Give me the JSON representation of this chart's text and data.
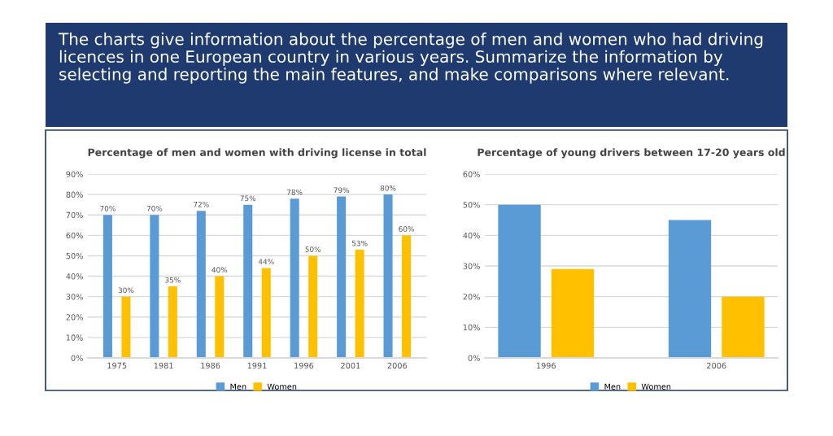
{
  "chart_data": [
    {
      "type": "other",
      "title": "The charts give information about the percentage of men and women who had driving licences in one European country in various years. Summarize the information by selecting and reporting the main features, and make comparisons where relevant."
    },
    {
      "type": "bar",
      "title": "Percentage of men and women with driving license in total",
      "categories": [
        "1975",
        "1981",
        "1986",
        "1991",
        "1996",
        "2001",
        "2006"
      ],
      "series": [
        {
          "name": "Men",
          "color": "#5b9bd5",
          "values": [
            70,
            70,
            72,
            75,
            78,
            79,
            80
          ],
          "value_labels": [
            "70%",
            "70%",
            "72%",
            "75%",
            "78%",
            "79%",
            "80%"
          ]
        },
        {
          "name": "Women",
          "color": "#ffc000",
          "values": [
            30,
            35,
            40,
            44,
            50,
            53,
            60
          ],
          "value_labels": [
            "30%",
            "35%",
            "40%",
            "44%",
            "50%",
            "53%",
            "60%"
          ]
        }
      ],
      "ylim": [
        0,
        90
      ],
      "yticks": [
        {
          "value": 0,
          "label": "0%"
        },
        {
          "value": 10,
          "label": "10%"
        },
        {
          "value": 20,
          "label": "20%"
        },
        {
          "value": 30,
          "label": "30%"
        },
        {
          "value": 40,
          "label": "40%"
        },
        {
          "value": 50,
          "label": "50%"
        },
        {
          "value": 60,
          "label": "60%"
        },
        {
          "value": 70,
          "label": "70%"
        },
        {
          "value": 80,
          "label": "80%"
        },
        {
          "value": 90,
          "label": "90%"
        }
      ],
      "grid": "y",
      "legend": "bottom"
    },
    {
      "type": "bar",
      "title": "Percentage of young drivers between 17-20 years old",
      "categories": [
        "1996",
        "2006"
      ],
      "series": [
        {
          "name": "Men",
          "color": "#5b9bd5",
          "values": [
            50,
            45
          ]
        },
        {
          "name": "Women",
          "color": "#ffc000",
          "values": [
            29,
            20
          ]
        }
      ],
      "ylim": [
        0,
        60
      ],
      "yticks": [
        {
          "value": 0,
          "label": "0%"
        },
        {
          "value": 10,
          "label": "10%"
        },
        {
          "value": 20,
          "label": "20%"
        },
        {
          "value": 30,
          "label": "30%"
        },
        {
          "value": 40,
          "label": "40%"
        },
        {
          "value": 50,
          "label": "50%"
        },
        {
          "value": 60,
          "label": "60%"
        }
      ],
      "grid": "y",
      "legend": "bottom"
    }
  ]
}
